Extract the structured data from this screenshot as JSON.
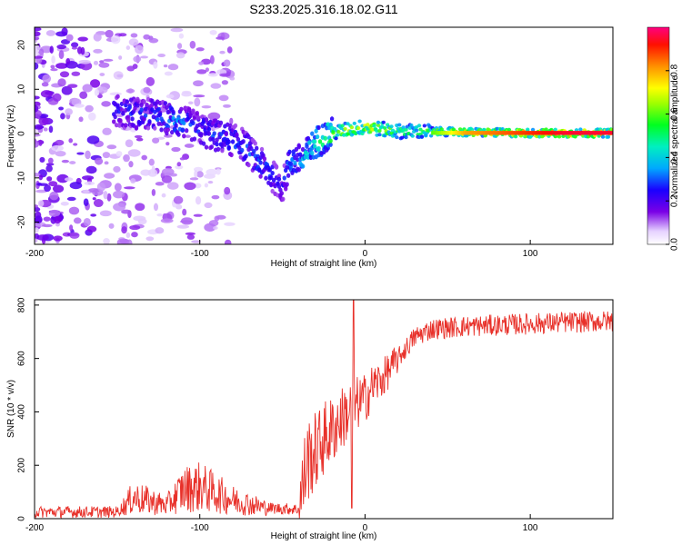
{
  "title": "S233.2025.316.18.02.G11",
  "chart_data": [
    {
      "type": "heatmap",
      "name": "spectrogram",
      "xlabel": "Height of straight line (km)",
      "ylabel": "Frequency (Hz)",
      "xlim": [
        -200,
        150
      ],
      "ylim": [
        -25,
        24
      ],
      "xticks": [
        -200,
        -100,
        0,
        100
      ],
      "yticks": [
        -20,
        -10,
        0,
        10,
        20
      ],
      "colorbar": {
        "label": "Normalized spectral amplitude",
        "range": [
          0.0,
          1.0
        ],
        "ticks": [
          0.0,
          0.2,
          0.4,
          0.6,
          0.8
        ]
      },
      "ridge": [
        {
          "x": -150,
          "y": 5,
          "amp": 0.25
        },
        {
          "x": -135,
          "y": 4.5,
          "amp": 0.3
        },
        {
          "x": -125,
          "y": 4,
          "amp": 0.3
        },
        {
          "x": -115,
          "y": 3,
          "amp": 0.35
        },
        {
          "x": -105,
          "y": 2,
          "amp": 0.3
        },
        {
          "x": -95,
          "y": 0,
          "amp": 0.3
        },
        {
          "x": -85,
          "y": -1,
          "amp": 0.3
        },
        {
          "x": -75,
          "y": -2,
          "amp": 0.32
        },
        {
          "x": -65,
          "y": -6,
          "amp": 0.3
        },
        {
          "x": -55,
          "y": -10,
          "amp": 0.3
        },
        {
          "x": -50,
          "y": -12,
          "amp": 0.25
        },
        {
          "x": -45,
          "y": -6,
          "amp": 0.35
        },
        {
          "x": -38,
          "y": -6,
          "amp": 0.4
        },
        {
          "x": -30,
          "y": -2,
          "amp": 0.5
        },
        {
          "x": -25,
          "y": -1,
          "amp": 0.55
        },
        {
          "x": -20,
          "y": 0,
          "amp": 0.6
        },
        {
          "x": -10,
          "y": 1,
          "amp": 0.7
        },
        {
          "x": 0,
          "y": 1.5,
          "amp": 0.72
        },
        {
          "x": 10,
          "y": 1,
          "amp": 0.72
        },
        {
          "x": 20,
          "y": 0.5,
          "amp": 0.55
        },
        {
          "x": 40,
          "y": 0.5,
          "amp": 0.6
        },
        {
          "x": 60,
          "y": 0.3,
          "amp": 0.8
        },
        {
          "x": 80,
          "y": 0.2,
          "amp": 0.85
        },
        {
          "x": 100,
          "y": 0.1,
          "amp": 0.9
        },
        {
          "x": 120,
          "y": 0.1,
          "amp": 0.95
        },
        {
          "x": 150,
          "y": 0.1,
          "amp": 0.95
        }
      ]
    },
    {
      "type": "line",
      "name": "snr",
      "xlabel": "Height of straight line (km)",
      "ylabel": "SNR (10 * v/v)",
      "xlim": [
        -200,
        150
      ],
      "ylim": [
        0,
        820
      ],
      "xticks": [
        -200,
        -100,
        0,
        100
      ],
      "yticks": [
        0,
        200,
        400,
        600,
        800
      ],
      "color": "#e8312a",
      "series": [
        {
          "name": "SNR",
          "x": [
            -200,
            -150,
            -140,
            -120,
            -110,
            -100,
            -80,
            -60,
            -40,
            -38,
            -35,
            -30,
            -25,
            -20,
            -15,
            -10,
            -5,
            0,
            5,
            10,
            15,
            20,
            25,
            30,
            40,
            60,
            80,
            100,
            120,
            150
          ],
          "y": [
            25,
            25,
            80,
            50,
            110,
            120,
            70,
            40,
            35,
            110,
            220,
            250,
            300,
            330,
            370,
            400,
            430,
            450,
            500,
            520,
            560,
            600,
            640,
            680,
            710,
            720,
            725,
            730,
            735,
            740
          ]
        }
      ]
    }
  ]
}
